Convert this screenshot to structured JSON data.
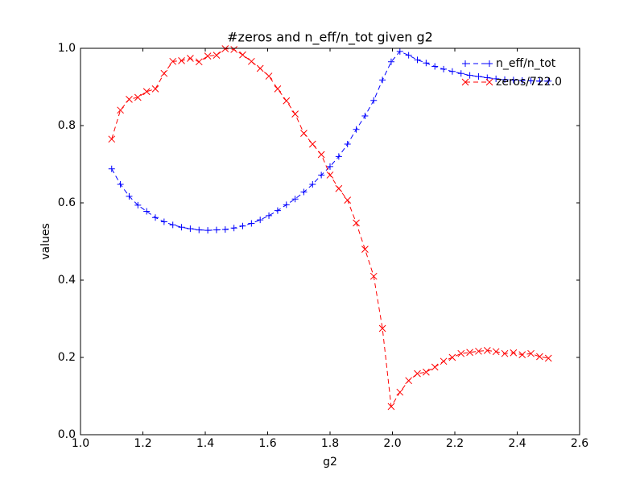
{
  "chart_data": {
    "type": "line",
    "title": "#zeros and n_eff/n_tot given g2",
    "x_label": "g2",
    "y_label": "values",
    "x": [
      1.1,
      1.128,
      1.156,
      1.184,
      1.212,
      1.24,
      1.268,
      1.296,
      1.324,
      1.352,
      1.38,
      1.408,
      1.436,
      1.464,
      1.492,
      1.52,
      1.548,
      1.576,
      1.604,
      1.632,
      1.66,
      1.688,
      1.716,
      1.744,
      1.772,
      1.8,
      1.828,
      1.856,
      1.884,
      1.912,
      1.94,
      1.968,
      1.996,
      2.024,
      2.052,
      2.08,
      2.108,
      2.136,
      2.164,
      2.192,
      2.22,
      2.248,
      2.276,
      2.304,
      2.332,
      2.36,
      2.388,
      2.416,
      2.444,
      2.472,
      2.5
    ],
    "series": [
      {
        "name": "n_eff/n_tot",
        "color": "#0000ff",
        "marker": "+",
        "values": [
          0.688,
          0.648,
          0.617,
          0.594,
          0.578,
          0.562,
          0.551,
          0.543,
          0.537,
          0.533,
          0.53,
          0.529,
          0.53,
          0.531,
          0.535,
          0.54,
          0.547,
          0.556,
          0.567,
          0.58,
          0.595,
          0.61,
          0.628,
          0.648,
          0.672,
          0.694,
          0.72,
          0.752,
          0.79,
          0.825,
          0.865,
          0.918,
          0.965,
          0.992,
          0.982,
          0.97,
          0.962,
          0.953,
          0.946,
          0.94,
          0.935,
          0.93,
          0.927,
          0.924,
          0.921,
          0.919,
          0.918,
          0.917,
          0.916,
          0.915,
          0.915
        ]
      },
      {
        "name": "zeros/722.0",
        "color": "#ff0000",
        "marker": "x",
        "values": [
          0.765,
          0.84,
          0.868,
          0.873,
          0.888,
          0.895,
          0.935,
          0.966,
          0.968,
          0.974,
          0.965,
          0.98,
          0.982,
          0.999,
          0.997,
          0.983,
          0.966,
          0.948,
          0.928,
          0.895,
          0.864,
          0.83,
          0.78,
          0.752,
          0.725,
          0.672,
          0.637,
          0.607,
          0.548,
          0.48,
          0.41,
          0.275,
          0.073,
          0.11,
          0.14,
          0.158,
          0.162,
          0.175,
          0.19,
          0.2,
          0.21,
          0.213,
          0.216,
          0.218,
          0.215,
          0.21,
          0.212,
          0.207,
          0.21,
          0.202,
          0.198
        ]
      }
    ],
    "xlim": [
      1.0,
      2.6
    ],
    "xticks": [
      {
        "value": 1.0,
        "label": "1.0"
      },
      1.2,
      1.4,
      1.6,
      1.8,
      {
        "value": 2.0,
        "label": "2.0"
      },
      2.2,
      2.4,
      2.6
    ],
    "ylim": [
      0.0,
      1.0
    ],
    "yticks": [
      {
        "value": 0.0,
        "label": "0.0"
      },
      0.2,
      0.4,
      0.6,
      0.8,
      {
        "value": 1.0,
        "label": "1.0"
      }
    ],
    "grid": false,
    "legend": "upper right",
    "linestyle": "dashed"
  }
}
